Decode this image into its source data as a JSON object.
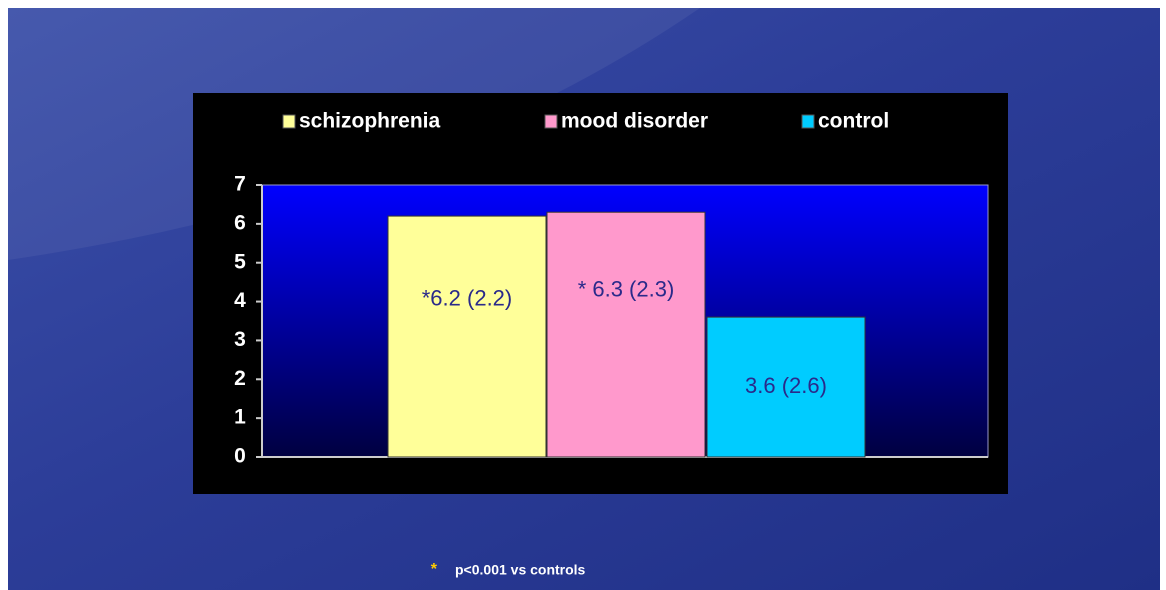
{
  "chart_data": {
    "type": "bar",
    "categories": [
      null
    ],
    "series": [
      {
        "name": "schizophrenia",
        "color": "#ffff99",
        "values": [
          6.2
        ],
        "value_labels": [
          "*6.2 (2.2)"
        ]
      },
      {
        "name": "mood disorder",
        "color": "#ff99cc",
        "values": [
          6.3
        ],
        "value_labels": [
          "* 6.3 (2.3)"
        ]
      },
      {
        "name": "control",
        "color": "#00ccff",
        "values": [
          3.6
        ],
        "value_labels": [
          "3.6 (2.6)"
        ]
      }
    ],
    "ylim": [
      0,
      7
    ],
    "yticks": [
      0,
      1,
      2,
      3,
      4,
      5,
      6,
      7
    ],
    "legend": "top",
    "footnote": {
      "marker": "*",
      "text": "p<0.001 vs controls"
    }
  }
}
